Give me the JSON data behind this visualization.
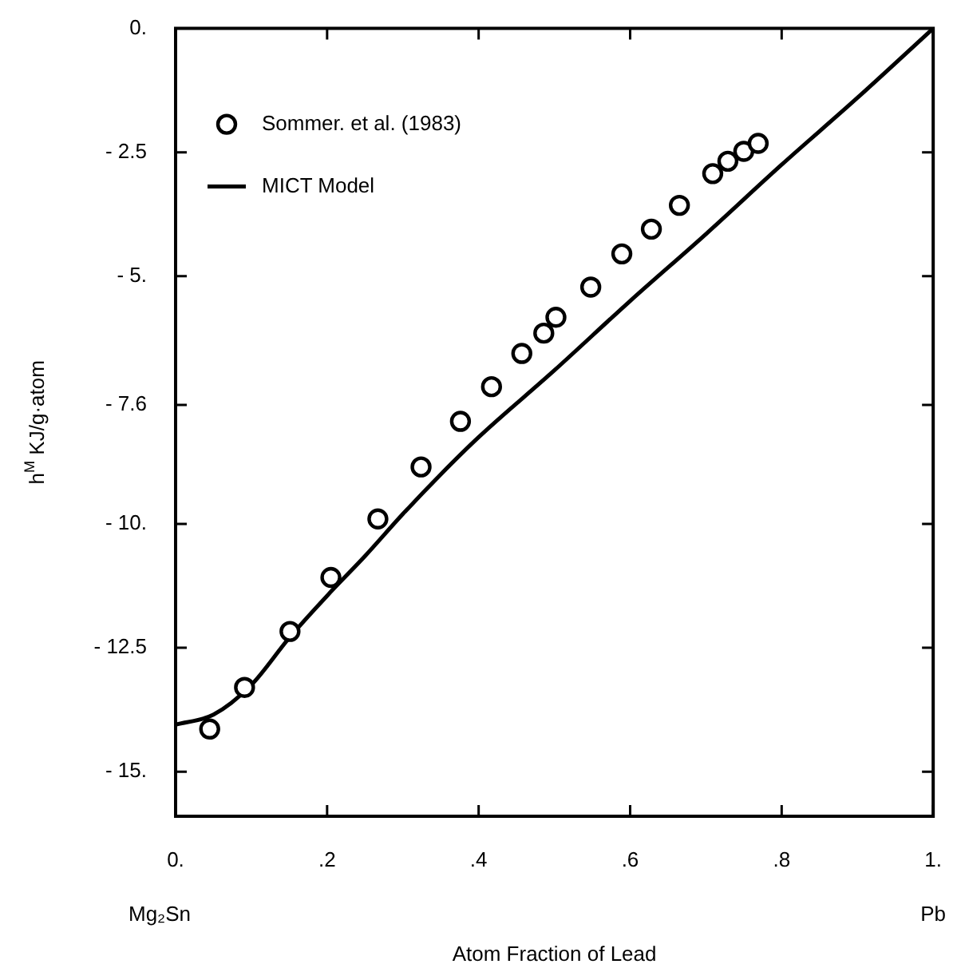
{
  "chart_data": {
    "type": "scatter",
    "xlabel": "Atom Fraction of Lead",
    "ylabel": "h$^{M}$ KJ/g·atom",
    "annotations": [
      "Mg₂Sn",
      "Pb"
    ],
    "xlim": [
      0,
      1
    ],
    "xticks": [
      {
        "value": 0,
        "label": "0."
      },
      {
        "value": 0.2,
        "label": ".2"
      },
      {
        "value": 0.4,
        "label": ".4"
      },
      {
        "value": 0.6,
        "label": ".6"
      },
      {
        "value": 0.8,
        "label": ".8"
      },
      {
        "value": 1,
        "label": "1."
      }
    ],
    "ylim": [
      -15.9,
      0
    ],
    "yticks": [
      {
        "value": 0,
        "label": "0."
      },
      {
        "value": -2.5,
        "label": "- 2.5"
      },
      {
        "value": -5,
        "label": "- 5."
      },
      {
        "value": -7.6,
        "label": "- 7.6"
      },
      {
        "value": -10,
        "label": "- 10."
      },
      {
        "value": -12.5,
        "label": "- 12.5"
      },
      {
        "value": -15,
        "label": "- 15."
      }
    ],
    "grid": false,
    "legend": "top left",
    "marker": "circle",
    "series": [
      {
        "name": "Sommer. et al. (1983)",
        "color": "#000000",
        "x": [
          0.045,
          0.091,
          0.151,
          0.205,
          0.267,
          0.324,
          0.376,
          0.417,
          0.457,
          0.486,
          0.502,
          0.548,
          0.589,
          0.628,
          0.665,
          0.709,
          0.729,
          0.75,
          0.769
        ],
        "values": [
          -14.14,
          -13.3,
          -12.17,
          -11.08,
          -9.9,
          -8.85,
          -7.93,
          -7.23,
          -6.56,
          -6.15,
          -5.83,
          -5.22,
          -4.55,
          -4.05,
          -3.57,
          -2.93,
          -2.68,
          -2.48,
          -2.32
        ]
      },
      {
        "name": "MICT Model",
        "type": "line",
        "color": "#000000",
        "marker": "none",
        "line_style": "solid",
        "x": [
          0,
          0.05,
          0.1,
          0.15,
          0.2,
          0.25,
          0.3,
          0.35,
          0.4,
          0.5,
          0.6,
          0.7,
          0.8,
          0.9,
          1
        ],
        "values": [
          -14.05,
          -13.85,
          -13.25,
          -12.3,
          -11.45,
          -10.65,
          -9.8,
          -9.0,
          -8.25,
          -6.9,
          -5.5,
          -4.15,
          -2.75,
          -1.4,
          0
        ]
      }
    ]
  }
}
